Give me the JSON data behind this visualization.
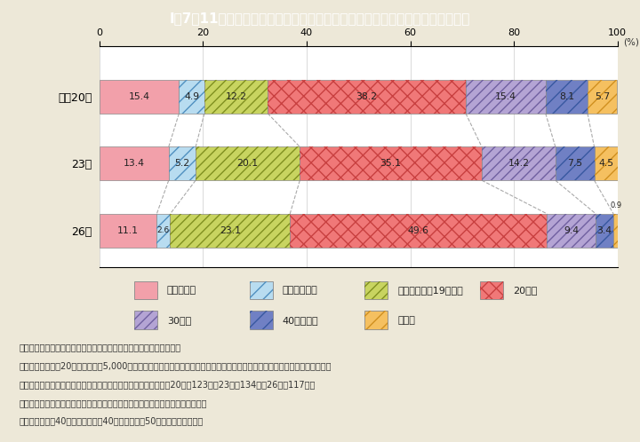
{
  "title": "I－7－11図　異性から無理やりに性交された被害にあった時期の推移（女性）",
  "title_bg": "#4AAAB8",
  "background": "#EDE8D8",
  "chart_bg": "#FFFFFF",
  "years": [
    "平成20年",
    "23年",
    "26年"
  ],
  "categories": [
    "小学生以下",
    "中学生のとき",
    "中学卒業から19歳まで",
    "20歳代",
    "30歳代",
    "40歳代以上",
    "無回答"
  ],
  "data": [
    [
      15.4,
      4.9,
      12.2,
      38.2,
      15.4,
      8.1,
      5.7
    ],
    [
      13.4,
      5.2,
      20.1,
      35.1,
      14.2,
      7.5,
      4.5
    ],
    [
      11.1,
      2.6,
      23.1,
      49.6,
      9.4,
      3.4,
      0.9
    ]
  ],
  "seg_colors": [
    "#F2A0AA",
    "#B8DCF0",
    "#C8D460",
    "#F07878",
    "#B4A4D4",
    "#7080C4",
    "#F5C060"
  ],
  "hatch_patterns": [
    null,
    "//",
    "///",
    "xx",
    "///",
    "//",
    "//"
  ],
  "hatch_colors": [
    null,
    "#5090C0",
    "#809020",
    "#C84040",
    "#7060A0",
    "#3858A0",
    "#D09020"
  ],
  "xticks": [
    0,
    20,
    40,
    60,
    80,
    100
  ],
  "note_lines": [
    "（備考）１．内閣府「男女間における暴力に関する調査」より作成。",
    "　　　　２．全国20歳以上の男女5,000人を対象とした無作為抽出によるアンケート調査。本設問は，異性から無理やりに性交",
    "　　　　　　されたことがある女性が回答。集計対象者は，平成20年が123人，23年が134人，26年が117人。",
    "　　　　３．「小学生以下」：「小学校入学前」及び「小学生のとき」の合計。",
    "　　　　　　「40歳代以上」：「40歳代」及び「50歳代以上」の合計。"
  ]
}
